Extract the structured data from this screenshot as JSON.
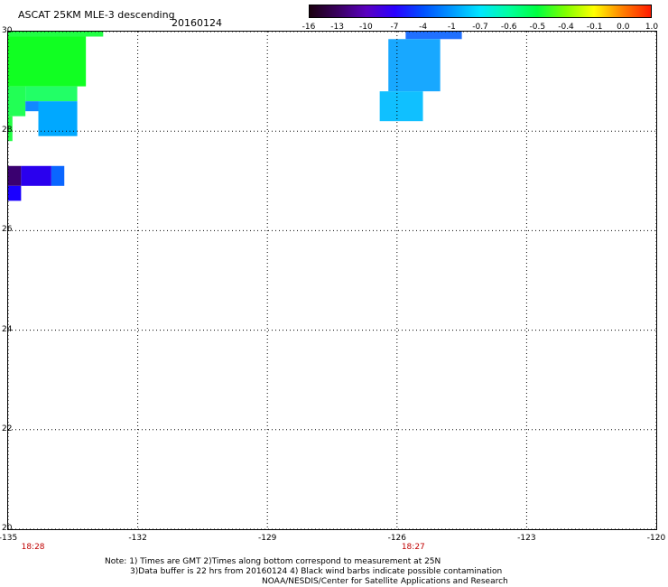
{
  "header": {
    "title": "ASCAT 25KM MLE-3 descending",
    "date": "20160124"
  },
  "colorbar": {
    "ticks": [
      "-16",
      "-13",
      "-10",
      "-7",
      "-4",
      "-1",
      "-0.7",
      "-0.6",
      "-0.5",
      "-0.4",
      "-0.1",
      "0.0",
      "1.0"
    ],
    "colors": [
      "#1a0010",
      "#3a0060",
      "#5a00c0",
      "#2a00ff",
      "#0050ff",
      "#0098ff",
      "#00e6ff",
      "#00ffa0",
      "#00ff40",
      "#80ff00",
      "#ffff00",
      "#ff8000",
      "#ff1a00"
    ]
  },
  "axes": {
    "x_labels": [
      "-135",
      "-132",
      "-129",
      "-126",
      "-123",
      "-120"
    ],
    "y_labels": [
      "30",
      "28",
      "26",
      "24",
      "22",
      "20"
    ],
    "time_labels": [
      {
        "text": "18:28",
        "lon": -134.8
      },
      {
        "text": "18:27",
        "lon": -126.0
      }
    ]
  },
  "chart_data": {
    "type": "heatmap",
    "x_range": [
      -135,
      -120
    ],
    "y_range": [
      20,
      30
    ],
    "grid": "dotted",
    "cells": [
      {
        "lon0": -135,
        "lon1": -132.8,
        "lat0": 29.9,
        "lat1": 30.0,
        "color": "#22ff44"
      },
      {
        "lon0": -135,
        "lon1": -133.2,
        "lat0": 28.9,
        "lat1": 29.9,
        "color": "#11ff22"
      },
      {
        "lon0": -135,
        "lon1": -134.6,
        "lat0": 28.3,
        "lat1": 28.9,
        "color": "#22ff55"
      },
      {
        "lon0": -134.6,
        "lon1": -133.4,
        "lat0": 28.6,
        "lat1": 28.9,
        "color": "#22ff66"
      },
      {
        "lon0": -134.6,
        "lon1": -134.3,
        "lat0": 28.4,
        "lat1": 28.6,
        "color": "#1188ff"
      },
      {
        "lon0": -134.3,
        "lon1": -133.4,
        "lat0": 27.9,
        "lat1": 28.6,
        "color": "#00a8ff"
      },
      {
        "lon0": -135,
        "lon1": -134.9,
        "lat0": 27.8,
        "lat1": 28.3,
        "color": "#22ff44"
      },
      {
        "lon0": -135,
        "lon1": -134.7,
        "lat0": 26.9,
        "lat1": 27.3,
        "color": "#3a0070"
      },
      {
        "lon0": -134.7,
        "lon1": -134.0,
        "lat0": 26.9,
        "lat1": 27.3,
        "color": "#2a00ee"
      },
      {
        "lon0": -134.0,
        "lon1": -133.7,
        "lat0": 26.9,
        "lat1": 27.3,
        "color": "#0a66ff"
      },
      {
        "lon0": -135,
        "lon1": -134.7,
        "lat0": 26.6,
        "lat1": 26.9,
        "color": "#1a00ff"
      },
      {
        "lon0": -125.8,
        "lon1": -124.5,
        "lat0": 29.85,
        "lat1": 30.0,
        "color": "#2070ff"
      },
      {
        "lon0": -126.2,
        "lon1": -125.0,
        "lat0": 28.8,
        "lat1": 29.85,
        "color": "#18a8ff"
      },
      {
        "lon0": -126.4,
        "lon1": -125.4,
        "lat0": 28.2,
        "lat1": 28.8,
        "color": "#10c0ff"
      }
    ]
  },
  "footer": {
    "note_line1": "Note: 1) Times are GMT 2)Times along bottom correspond to measurement at 25N",
    "note_line2": "3)Data buffer is 22 hrs from 20160124 4) Black wind barbs indicate possible contamination",
    "credit": "NOAA/NESDIS/Center for Satellite Applications and Research"
  }
}
